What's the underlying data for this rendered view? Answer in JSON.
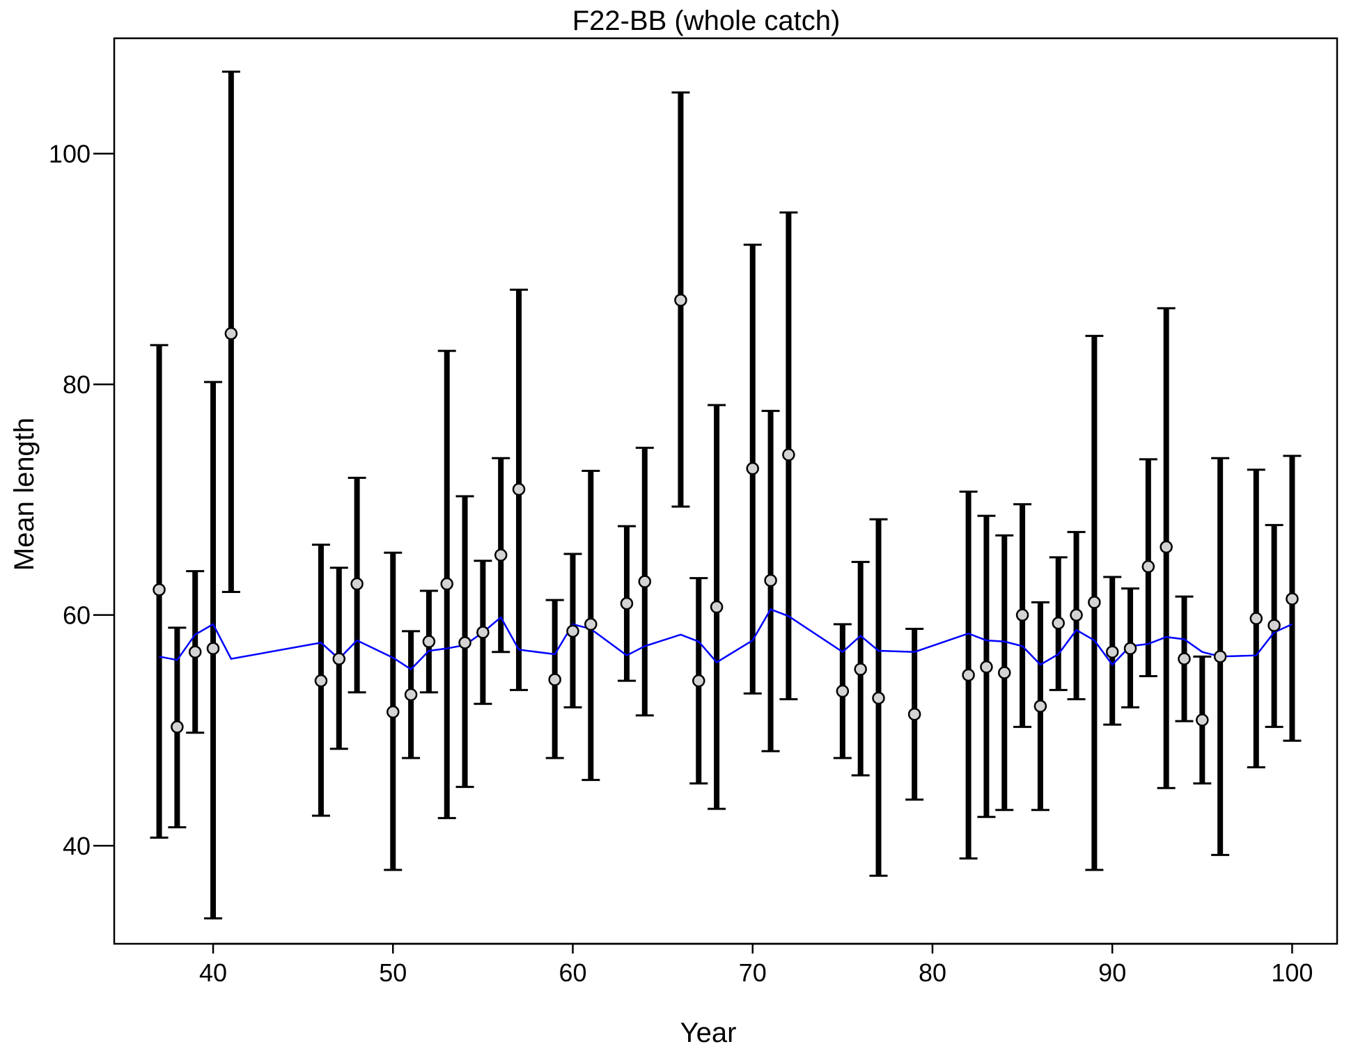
{
  "chart_data": {
    "type": "scatter",
    "title": "F22-BB (whole catch)",
    "xlabel": "Year",
    "ylabel": "Mean length",
    "xlim": [
      34.5,
      102.5
    ],
    "ylim": [
      31.5,
      110
    ],
    "x_ticks": [
      40,
      50,
      60,
      70,
      80,
      90,
      100
    ],
    "y_ticks": [
      40,
      60,
      80,
      100
    ],
    "grid": false,
    "legend": "none",
    "colors": {
      "observed": "#000000",
      "point_fill": "#d3d3d3",
      "expected": "#0000ff"
    },
    "observed": {
      "x": [
        37,
        38,
        39,
        40,
        41,
        46,
        47,
        48,
        50,
        51,
        52,
        53,
        54,
        55,
        56,
        57,
        59,
        60,
        61,
        63,
        64,
        66,
        67,
        68,
        70,
        71,
        72,
        75,
        76,
        77,
        79,
        82,
        83,
        84,
        85,
        86,
        87,
        88,
        89,
        90,
        91,
        92,
        93,
        94,
        95,
        96,
        98,
        99,
        100
      ],
      "y": [
        62.2,
        50.3,
        56.8,
        57.1,
        84.4,
        54.3,
        56.2,
        62.7,
        51.6,
        53.1,
        57.7,
        62.7,
        57.6,
        58.5,
        65.2,
        70.9,
        54.4,
        58.6,
        59.2,
        61.0,
        62.9,
        87.3,
        54.3,
        60.7,
        72.7,
        63.0,
        73.9,
        53.4,
        55.3,
        52.8,
        51.4,
        54.8,
        55.5,
        55.0,
        60.0,
        52.1,
        59.3,
        60.0,
        61.1,
        56.8,
        57.1,
        64.2,
        65.9,
        56.2,
        50.9,
        56.4,
        59.7,
        59.1,
        61.4
      ],
      "lower": [
        40.7,
        41.6,
        49.8,
        33.7,
        62.0,
        42.6,
        48.4,
        53.3,
        37.9,
        47.6,
        53.3,
        42.4,
        45.1,
        52.3,
        56.8,
        53.5,
        47.6,
        52.0,
        45.7,
        54.3,
        51.3,
        69.4,
        45.4,
        43.2,
        53.2,
        48.2,
        52.7,
        47.6,
        46.1,
        37.4,
        44.0,
        38.9,
        42.5,
        43.1,
        50.3,
        43.1,
        53.5,
        52.7,
        37.9,
        50.5,
        52.0,
        54.7,
        45.0,
        50.8,
        45.4,
        39.2,
        46.8,
        50.3,
        49.1
      ],
      "upper": [
        83.4,
        58.9,
        63.8,
        80.2,
        107.1,
        66.1,
        64.1,
        71.9,
        65.4,
        58.6,
        62.1,
        82.9,
        70.3,
        64.7,
        73.6,
        88.2,
        61.3,
        65.3,
        72.5,
        67.7,
        74.5,
        105.3,
        63.2,
        78.2,
        92.1,
        77.7,
        94.9,
        59.2,
        64.6,
        68.3,
        58.8,
        70.7,
        68.6,
        66.9,
        69.6,
        61.1,
        65.0,
        67.2,
        84.2,
        63.3,
        62.3,
        73.5,
        86.6,
        61.6,
        56.4,
        73.6,
        72.6,
        67.8,
        73.8
      ]
    },
    "expected": {
      "x": [
        37,
        38,
        39,
        40,
        41,
        46,
        47,
        48,
        50,
        51,
        52,
        53,
        54,
        55,
        56,
        57,
        59,
        60,
        61,
        63,
        64,
        66,
        67,
        68,
        70,
        71,
        72,
        75,
        76,
        77,
        79,
        82,
        83,
        84,
        85,
        86,
        87,
        88,
        89,
        90,
        91,
        92,
        93,
        94,
        95,
        96,
        98,
        99,
        100
      ],
      "y": [
        56.4,
        56.1,
        58.3,
        59.2,
        56.2,
        57.6,
        56.2,
        57.8,
        56.3,
        55.3,
        56.9,
        57.1,
        57.4,
        58.5,
        59.8,
        57.0,
        56.6,
        59.2,
        58.8,
        56.5,
        57.3,
        58.3,
        57.7,
        55.9,
        57.8,
        60.5,
        59.9,
        56.8,
        58.2,
        56.9,
        56.8,
        58.4,
        57.8,
        57.7,
        57.3,
        55.7,
        56.6,
        58.7,
        57.8,
        55.7,
        57.3,
        57.5,
        58.1,
        57.9,
        56.8,
        56.4,
        56.5,
        58.5,
        59.2
      ]
    }
  }
}
